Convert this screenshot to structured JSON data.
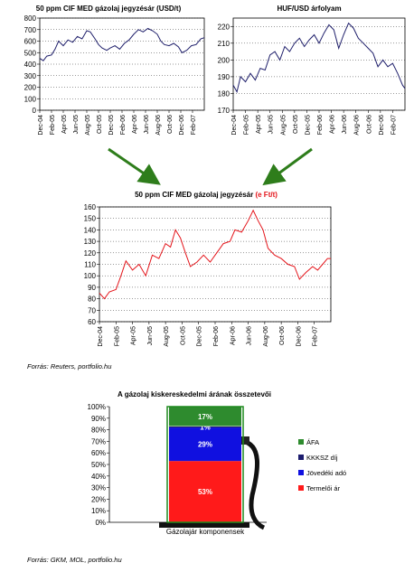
{
  "colors": {
    "line_dark": "#1f1f6b",
    "line_red": "#e4141a",
    "arrow": "#2e7d1b",
    "afa": "#2e8b2e",
    "kkksz": "#1c1c6e",
    "jovedeki": "#1010e0",
    "termeloi": "#ff1a1a",
    "pump_wall": "#1f8a1f"
  },
  "chart_data": [
    {
      "type": "line",
      "title": "50 ppm CIF MED gázolaj jegyzésár (USD/t)",
      "ylim": [
        0,
        800
      ],
      "yticks": [
        "0",
        "100",
        "200",
        "300",
        "400",
        "500",
        "600",
        "700",
        "800"
      ],
      "xticks": [
        "Dec-04",
        "Feb-05",
        "Apr-05",
        "Jun-05",
        "Aug-05",
        "Oct-05",
        "Dec-05",
        "Feb-06",
        "Apr-06",
        "Jun-06",
        "Aug-06",
        "Oct-06",
        "Dec-06",
        "Feb-07"
      ],
      "series": [
        {
          "values": [
            [
              0,
              450
            ],
            [
              0.3,
              430
            ],
            [
              0.6,
              470
            ],
            [
              1.0,
              480
            ],
            [
              1.3,
              530
            ],
            [
              1.6,
              600
            ],
            [
              2.0,
              560
            ],
            [
              2.4,
              610
            ],
            [
              2.8,
              590
            ],
            [
              3.2,
              640
            ],
            [
              3.6,
              620
            ],
            [
              4.0,
              690
            ],
            [
              4.3,
              680
            ],
            [
              4.7,
              620
            ],
            [
              5.0,
              570
            ],
            [
              5.3,
              540
            ],
            [
              5.7,
              520
            ],
            [
              6.0,
              540
            ],
            [
              6.4,
              560
            ],
            [
              6.8,
              530
            ],
            [
              7.2,
              580
            ],
            [
              7.6,
              610
            ],
            [
              8.0,
              660
            ],
            [
              8.4,
              700
            ],
            [
              8.8,
              680
            ],
            [
              9.2,
              710
            ],
            [
              9.6,
              690
            ],
            [
              10.0,
              660
            ],
            [
              10.3,
              600
            ],
            [
              10.6,
              570
            ],
            [
              11.0,
              560
            ],
            [
              11.4,
              580
            ],
            [
              11.8,
              550
            ],
            [
              12.1,
              500
            ],
            [
              12.5,
              520
            ],
            [
              12.9,
              560
            ],
            [
              13.3,
              570
            ],
            [
              13.7,
              620
            ],
            [
              14.0,
              630
            ]
          ]
        }
      ]
    },
    {
      "type": "line",
      "title": "HUF/USD árfolyam",
      "ylim": [
        170,
        225
      ],
      "yticks": [
        "170",
        "180",
        "190",
        "200",
        "210",
        "220"
      ],
      "xticks": [
        "Dec-04",
        "Feb-05",
        "Apr-05",
        "Jun-05",
        "Aug-05",
        "Oct-05",
        "Dec-05",
        "Feb-06",
        "Apr-06",
        "Jun-06",
        "Aug-06",
        "Oct-06",
        "Dec-06",
        "Feb-07"
      ],
      "series": [
        {
          "values": [
            [
              0,
              185
            ],
            [
              0.3,
              181
            ],
            [
              0.6,
              190
            ],
            [
              1.0,
              187
            ],
            [
              1.4,
              192
            ],
            [
              1.8,
              188
            ],
            [
              2.2,
              195
            ],
            [
              2.6,
              194
            ],
            [
              3.0,
              203
            ],
            [
              3.4,
              205
            ],
            [
              3.8,
              200
            ],
            [
              4.2,
              208
            ],
            [
              4.6,
              205
            ],
            [
              5.0,
              210
            ],
            [
              5.4,
              213
            ],
            [
              5.8,
              208
            ],
            [
              6.2,
              212
            ],
            [
              6.6,
              215
            ],
            [
              7.0,
              210
            ],
            [
              7.4,
              216
            ],
            [
              7.8,
              221
            ],
            [
              8.2,
              218
            ],
            [
              8.6,
              207
            ],
            [
              9.0,
              215
            ],
            [
              9.4,
              222
            ],
            [
              9.8,
              219
            ],
            [
              10.2,
              213
            ],
            [
              10.6,
              210
            ],
            [
              11.0,
              207
            ],
            [
              11.4,
              204
            ],
            [
              11.8,
              196
            ],
            [
              12.2,
              200
            ],
            [
              12.6,
              196
            ],
            [
              13.0,
              198
            ],
            [
              13.4,
              192
            ],
            [
              13.8,
              185
            ],
            [
              14.0,
              183
            ]
          ]
        }
      ]
    },
    {
      "type": "line",
      "title": "50 ppm CIF MED gázolaj jegyzésár ",
      "title_unit": "(e Ft/t)",
      "ylim": [
        60,
        160
      ],
      "yticks": [
        "60",
        "70",
        "80",
        "90",
        "100",
        "110",
        "120",
        "130",
        "140",
        "150",
        "160"
      ],
      "xticks": [
        "Dec-04",
        "Feb-05",
        "Apr-05",
        "Jun-05",
        "Aug-05",
        "Oct-05",
        "Dec-05",
        "Feb-06",
        "Apr-06",
        "Jun-06",
        "Aug-06",
        "Oct-06",
        "Dec-06",
        "Feb-07"
      ],
      "series": [
        {
          "values": [
            [
              0,
              85
            ],
            [
              0.3,
              80
            ],
            [
              0.6,
              86
            ],
            [
              1.0,
              88
            ],
            [
              1.3,
              100
            ],
            [
              1.6,
              113
            ],
            [
              2.0,
              105
            ],
            [
              2.4,
              110
            ],
            [
              2.8,
              100
            ],
            [
              3.2,
              118
            ],
            [
              3.6,
              115
            ],
            [
              4.0,
              128
            ],
            [
              4.3,
              125
            ],
            [
              4.6,
              140
            ],
            [
              4.9,
              133
            ],
            [
              5.2,
              120
            ],
            [
              5.5,
              108
            ],
            [
              5.9,
              112
            ],
            [
              6.3,
              118
            ],
            [
              6.7,
              112
            ],
            [
              7.1,
              120
            ],
            [
              7.5,
              128
            ],
            [
              7.9,
              130
            ],
            [
              8.2,
              140
            ],
            [
              8.6,
              138
            ],
            [
              9.0,
              148
            ],
            [
              9.3,
              157
            ],
            [
              9.6,
              148
            ],
            [
              9.9,
              140
            ],
            [
              10.2,
              124
            ],
            [
              10.6,
              118
            ],
            [
              11.0,
              115
            ],
            [
              11.4,
              110
            ],
            [
              11.8,
              108
            ],
            [
              12.1,
              97
            ],
            [
              12.5,
              103
            ],
            [
              12.9,
              108
            ],
            [
              13.2,
              105
            ],
            [
              13.5,
              110
            ],
            [
              13.8,
              115
            ],
            [
              14.0,
              115
            ]
          ]
        }
      ]
    },
    {
      "type": "bar",
      "stacked": true,
      "title": "A gázolaj kiskereskedelmi árának összetevői",
      "ylim": [
        0,
        100
      ],
      "yticks": [
        "0%",
        "10%",
        "20%",
        "30%",
        "40%",
        "50%",
        "60%",
        "70%",
        "80%",
        "90%",
        "100%"
      ],
      "categories": [
        "Gázolajár komponensek"
      ],
      "series": [
        {
          "name": "Termelői ár",
          "values": [
            53
          ],
          "label": "53%"
        },
        {
          "name": "Jövedéki adó",
          "values": [
            29
          ],
          "label": "29%"
        },
        {
          "name": "KKKSZ díj",
          "values": [
            1
          ],
          "label": "1%"
        },
        {
          "name": "ÁFA",
          "values": [
            17
          ],
          "label": "17%"
        }
      ],
      "legend_order": [
        "ÁFA",
        "KKKSZ díj",
        "Jövedéki adó",
        "Termelői ár"
      ]
    }
  ],
  "sources": {
    "top": "Forrás: Reuters, portfolio.hu",
    "bottom": "Forrás: GKM, MOL, portfolio.hu"
  }
}
